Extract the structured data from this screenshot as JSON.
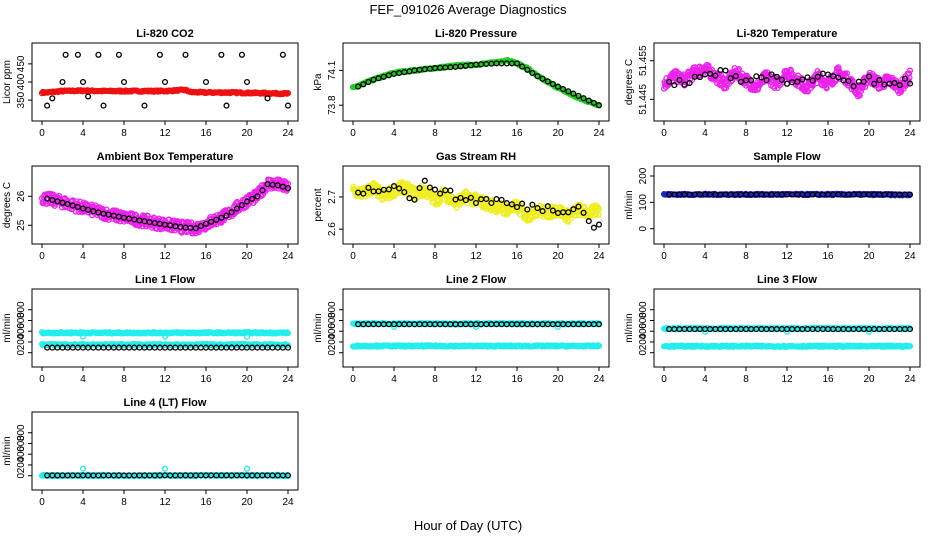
{
  "title": "FEF_091026  Average Diagnostics",
  "xlabel": "Hour of Day (UTC)",
  "colors": {
    "red": "#ee1111",
    "green": "#22cc22",
    "magenta": "#ee22ee",
    "yellow": "#eeee22",
    "blue": "#2222cc",
    "cyan": "#22eeee",
    "black": "#000000"
  },
  "chart_data": [
    {
      "type": "scatter",
      "title": "Li-820 CO2",
      "ylabel": "Licor ppm",
      "xlim": [
        0,
        24
      ],
      "ylim": [
        320,
        480
      ],
      "yticks": [
        350,
        400,
        450
      ],
      "xticks": [
        0,
        4,
        8,
        12,
        16,
        20,
        24
      ],
      "series": [
        {
          "name": "all",
          "color": "red",
          "x": [
            0.5,
            2,
            4,
            6,
            8,
            10,
            12,
            14,
            14.5,
            16,
            18,
            20,
            22,
            24
          ],
          "y": [
            371,
            375,
            376,
            375,
            375,
            375,
            375,
            378,
            372,
            371,
            371,
            370,
            369,
            368
          ]
        },
        {
          "name": "average",
          "color": "black",
          "x": [
            0.5,
            1,
            2,
            2.3,
            3.5,
            4,
            4.5,
            5.5,
            6,
            7.5,
            8,
            10,
            11.5,
            12,
            14,
            16,
            17.5,
            18,
            19.5,
            20,
            22,
            23.5,
            24
          ],
          "y": [
            335,
            355,
            400,
            475,
            475,
            400,
            360,
            475,
            335,
            475,
            400,
            335,
            475,
            400,
            475,
            400,
            475,
            335,
            475,
            400,
            355,
            475,
            335
          ]
        }
      ]
    },
    {
      "type": "scatter",
      "title": "Li-820 Pressure",
      "ylabel": "kPa",
      "xlim": [
        0,
        24
      ],
      "ylim": [
        73.75,
        74.25
      ],
      "yticks": [
        73.8,
        74.1
      ],
      "xticks": [
        0,
        4,
        8,
        12,
        16,
        20,
        24
      ],
      "series": [
        {
          "name": "all",
          "color": "green",
          "x": [
            0,
            2,
            4,
            6,
            8,
            10,
            12,
            14,
            15,
            16,
            17,
            18,
            20,
            22,
            24
          ],
          "y": [
            73.95,
            74.02,
            74.08,
            74.1,
            74.12,
            74.14,
            74.15,
            74.17,
            74.19,
            74.16,
            74.12,
            74.05,
            73.95,
            73.86,
            73.8
          ]
        },
        {
          "name": "average",
          "color": "black",
          "x": [
            0.5,
            2,
            4,
            6,
            8,
            10,
            12,
            14,
            16,
            18,
            20,
            22,
            24
          ],
          "y": [
            73.96,
            74.02,
            74.07,
            74.1,
            74.12,
            74.13,
            74.15,
            74.16,
            74.16,
            74.05,
            73.96,
            73.88,
            73.8
          ]
        }
      ]
    },
    {
      "type": "scatter",
      "title": "Li-820 Temperature",
      "ylabel": "degrees C",
      "xlim": [
        0,
        24
      ],
      "ylim": [
        51.442,
        51.457
      ],
      "yticks": [
        51.445,
        51.455
      ],
      "xticks": [
        0,
        4,
        8,
        12,
        16,
        20,
        24
      ],
      "series": [
        {
          "name": "all",
          "color": "magenta",
          "x": [
            0,
            1,
            2,
            3,
            4,
            5,
            6,
            7,
            8,
            9,
            10,
            11,
            12,
            13,
            14,
            15,
            16,
            17,
            18,
            19,
            20,
            21,
            22,
            23,
            24
          ],
          "y": [
            51.449,
            51.451,
            51.45,
            51.452,
            51.453,
            51.451,
            51.449,
            51.452,
            51.45,
            51.448,
            51.451,
            51.449,
            51.452,
            51.45,
            51.448,
            51.451,
            51.449,
            51.452,
            51.45,
            51.447,
            51.451,
            51.449,
            51.45,
            51.448,
            51.451
          ]
        },
        {
          "name": "average",
          "color": "black",
          "x": [
            0.5,
            2,
            4,
            6,
            8,
            10,
            12,
            14,
            16,
            18,
            20,
            22,
            23.5
          ],
          "y": [
            51.45,
            51.449,
            51.451,
            51.452,
            51.45,
            51.451,
            51.449,
            51.45,
            51.451,
            51.449,
            51.45,
            51.449,
            51.45
          ]
        }
      ]
    },
    {
      "type": "scatter",
      "title": "Ambient Box Temperature",
      "ylabel": "degrees C",
      "xlim": [
        0,
        24
      ],
      "ylim": [
        24.7,
        26.7
      ],
      "yticks": [
        25.0,
        26.0
      ],
      "xticks": [
        0,
        4,
        8,
        12,
        16,
        20,
        24
      ],
      "series": [
        {
          "name": "all",
          "color": "magenta",
          "x": [
            0,
            2,
            4,
            6,
            8,
            10,
            12,
            14,
            15,
            16,
            18,
            20,
            21,
            22,
            23,
            24
          ],
          "y": [
            25.95,
            25.8,
            25.6,
            25.42,
            25.27,
            25.15,
            25.03,
            24.92,
            24.9,
            25.05,
            25.35,
            25.85,
            26.0,
            26.45,
            26.4,
            26.3
          ]
        },
        {
          "name": "average",
          "color": "black",
          "x": [
            0.5,
            2,
            4,
            6,
            8,
            10,
            12,
            14,
            15,
            16,
            18,
            20,
            21,
            22,
            23,
            24
          ],
          "y": [
            25.92,
            25.78,
            25.58,
            25.4,
            25.26,
            25.14,
            25.02,
            24.92,
            24.9,
            25.05,
            25.33,
            25.82,
            26.0,
            26.42,
            26.38,
            26.28
          ]
        }
      ]
    },
    {
      "type": "scatter",
      "title": "Gas Stream RH",
      "ylabel": "percent",
      "xlim": [
        0,
        24
      ],
      "ylim": [
        2.585,
        2.765
      ],
      "yticks": [
        2.6,
        2.7
      ],
      "xticks": [
        0,
        4,
        8,
        12,
        16,
        20,
        24
      ],
      "series": [
        {
          "name": "all",
          "color": "yellow",
          "x": [
            0,
            1,
            2,
            3,
            4,
            5,
            6,
            7,
            8,
            9,
            10,
            11,
            12,
            13,
            14,
            15,
            16,
            17,
            18,
            19,
            20,
            21,
            22,
            23,
            24
          ],
          "y": [
            2.72,
            2.71,
            2.73,
            2.7,
            2.72,
            2.73,
            2.71,
            2.72,
            2.69,
            2.71,
            2.68,
            2.7,
            2.69,
            2.68,
            2.67,
            2.66,
            2.67,
            2.64,
            2.66,
            2.65,
            2.66,
            2.64,
            2.66,
            2.65,
            2.66
          ]
        },
        {
          "name": "average",
          "color": "black",
          "x": [
            0.5,
            2,
            3,
            4,
            5,
            6,
            7,
            8,
            10,
            12,
            14,
            16,
            18,
            20,
            22,
            23.5
          ],
          "y": [
            2.72,
            2.72,
            2.73,
            2.74,
            2.71,
            2.7,
            2.74,
            2.73,
            2.7,
            2.69,
            2.69,
            2.67,
            2.67,
            2.66,
            2.67,
            2.61
          ]
        }
      ]
    },
    {
      "type": "scatter",
      "title": "Sample Flow",
      "ylabel": "ml/min",
      "xlim": [
        0,
        24
      ],
      "ylim": [
        -20,
        200
      ],
      "yticks": [
        0,
        100,
        200
      ],
      "xticks": [
        0,
        4,
        8,
        12,
        16,
        20,
        24
      ],
      "series": [
        {
          "name": "all",
          "color": "blue",
          "x": [
            0,
            4,
            8,
            12,
            16,
            20,
            24
          ],
          "y": [
            130,
            130,
            130,
            130,
            130,
            130,
            128
          ]
        },
        {
          "name": "average",
          "color": "black",
          "x": [
            0.5,
            4,
            8,
            12,
            16,
            20,
            23.5
          ],
          "y": [
            130,
            130,
            130,
            130,
            130,
            130,
            130
          ]
        }
      ]
    },
    {
      "type": "scatter",
      "title": "Line 1 Flow",
      "ylabel": "ml/min",
      "xlim": [
        0,
        24
      ],
      "ylim": [
        -80,
        1000
      ],
      "yticks": [
        0,
        200,
        400,
        600,
        800
      ],
      "xticks": [
        0,
        4,
        8,
        12,
        16,
        20,
        24
      ],
      "series": [
        {
          "name": "cyan-high",
          "color": "cyan",
          "x": [
            0,
            4,
            8,
            12,
            16,
            20,
            24
          ],
          "y": [
            370,
            370,
            370,
            370,
            370,
            370,
            370
          ]
        },
        {
          "name": "cyan-low",
          "color": "cyan",
          "x": [
            0,
            4,
            8,
            12,
            16,
            20,
            24
          ],
          "y": [
            150,
            150,
            150,
            150,
            150,
            150,
            150
          ]
        },
        {
          "name": "cyan-dips",
          "color": "cyan",
          "x": [
            4,
            12,
            20
          ],
          "y": [
            300,
            300,
            300
          ]
        },
        {
          "name": "average",
          "color": "black",
          "x": [
            0.5,
            4,
            8,
            12,
            16,
            20,
            24
          ],
          "y": [
            95,
            95,
            95,
            95,
            95,
            95,
            95
          ]
        }
      ]
    },
    {
      "type": "scatter",
      "title": "Line 2 Flow",
      "ylabel": "ml/min",
      "xlim": [
        0,
        24
      ],
      "ylim": [
        -80,
        1000
      ],
      "yticks": [
        0,
        200,
        400,
        600,
        800
      ],
      "xticks": [
        0,
        4,
        8,
        12,
        16,
        20,
        24
      ],
      "series": [
        {
          "name": "cyan-high",
          "color": "cyan",
          "x": [
            0,
            4,
            8,
            12,
            16,
            20,
            24
          ],
          "y": [
            540,
            540,
            540,
            540,
            540,
            540,
            540
          ]
        },
        {
          "name": "cyan-low",
          "color": "cyan",
          "x": [
            0,
            4,
            8,
            12,
            16,
            20,
            24
          ],
          "y": [
            125,
            125,
            125,
            125,
            125,
            125,
            125
          ]
        },
        {
          "name": "cyan-dips",
          "color": "cyan",
          "x": [
            4,
            12,
            20
          ],
          "y": [
            480,
            480,
            480
          ]
        },
        {
          "name": "average",
          "color": "black",
          "x": [
            0.5,
            4,
            8,
            12,
            16,
            20,
            24
          ],
          "y": [
            530,
            530,
            530,
            530,
            530,
            530,
            530
          ]
        }
      ]
    },
    {
      "type": "scatter",
      "title": "Line 3 Flow",
      "ylabel": "ml/min",
      "xlim": [
        0,
        24
      ],
      "ylim": [
        -80,
        1000
      ],
      "yticks": [
        0,
        200,
        400,
        600,
        800
      ],
      "xticks": [
        0,
        4,
        8,
        12,
        16,
        20,
        24
      ],
      "series": [
        {
          "name": "cyan-high",
          "color": "cyan",
          "x": [
            0,
            4,
            8,
            12,
            16,
            20,
            24
          ],
          "y": [
            450,
            450,
            450,
            450,
            450,
            450,
            450
          ]
        },
        {
          "name": "cyan-low",
          "color": "cyan",
          "x": [
            0,
            4,
            8,
            12,
            16,
            20,
            24
          ],
          "y": [
            120,
            120,
            120,
            120,
            120,
            120,
            120
          ]
        },
        {
          "name": "cyan-dips",
          "color": "cyan",
          "x": [
            4,
            12,
            20
          ],
          "y": [
            390,
            390,
            390
          ]
        },
        {
          "name": "average",
          "color": "black",
          "x": [
            0.5,
            4,
            8,
            12,
            16,
            20,
            24
          ],
          "y": [
            440,
            440,
            440,
            440,
            440,
            440,
            440
          ]
        }
      ]
    },
    {
      "type": "scatter",
      "title": "Line 4 (LT) Flow",
      "ylabel": "ml/min",
      "xlim": [
        0,
        24
      ],
      "ylim": [
        -80,
        1000
      ],
      "yticks": [
        0,
        200,
        400,
        600,
        800
      ],
      "xticks": [
        0,
        4,
        8,
        12,
        16,
        20,
        24
      ],
      "series": [
        {
          "name": "cyan-low",
          "color": "cyan",
          "x": [
            0,
            4,
            8,
            12,
            16,
            20,
            24
          ],
          "y": [
            5,
            5,
            5,
            5,
            5,
            5,
            5
          ]
        },
        {
          "name": "cyan-spikes",
          "color": "cyan",
          "x": [
            4,
            12,
            20
          ],
          "y": [
            130,
            130,
            130
          ]
        },
        {
          "name": "average",
          "color": "black",
          "x": [
            0.5,
            4,
            8,
            12,
            16,
            20,
            24
          ],
          "y": [
            5,
            5,
            5,
            5,
            5,
            5,
            5
          ]
        }
      ]
    }
  ]
}
